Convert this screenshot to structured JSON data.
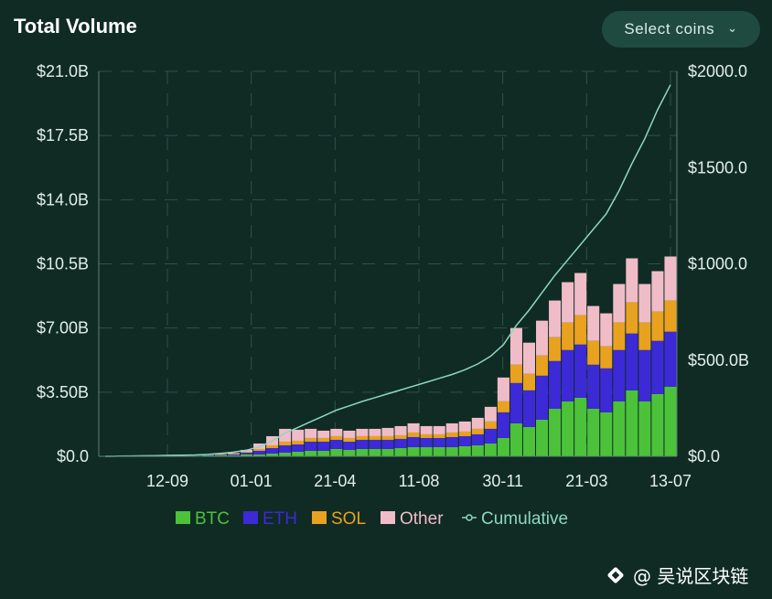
{
  "header": {
    "title": "Total Volume",
    "select_label": "Select coins",
    "select_icon": "chevron-down-icon"
  },
  "colors": {
    "background": "#0f2b24",
    "btc": "#4cc23a",
    "eth": "#3c2ad6",
    "sol": "#e8a21f",
    "other": "#f0bcc8",
    "cumulative": "#8fd7c0",
    "grid": "#2f5249",
    "axis_text": "#e4eeea"
  },
  "chart_data": {
    "type": "bar",
    "stacked": true,
    "x_tick_labels": [
      "12-09",
      "01-01",
      "21-04",
      "11-08",
      "30-11",
      "21-03",
      "13-07"
    ],
    "y_left": {
      "range": [
        0,
        21.0
      ],
      "unit": "B USD",
      "tick_labels": [
        "$0.0",
        "$3.50B",
        "$7.00B",
        "$10.5B",
        "$14.0B",
        "$17.5B",
        "$21.0B"
      ],
      "tick_values": [
        0,
        3.5,
        7.0,
        10.5,
        14.0,
        17.5,
        21.0
      ]
    },
    "y_right": {
      "range": [
        0,
        2000
      ],
      "unit": "B USD",
      "tick_labels": [
        "$0.0",
        "$500.0B",
        "$1000.0",
        "$1500.0",
        "$2000.0"
      ],
      "tick_values": [
        0,
        500,
        1000,
        1500,
        2000
      ]
    },
    "legend": {
      "placement": "bottom-center",
      "entries": [
        {
          "name": "BTC",
          "color": "#4cc23a",
          "marker": "square"
        },
        {
          "name": "ETH",
          "color": "#3c2ad6",
          "marker": "square"
        },
        {
          "name": "SOL",
          "color": "#e8a21f",
          "marker": "square"
        },
        {
          "name": "Other",
          "color": "#f0bcc8",
          "marker": "square"
        },
        {
          "name": "Cumulative",
          "color": "#8fd7c0",
          "marker": "line-dot"
        }
      ]
    },
    "grid": true,
    "series": [
      {
        "name": "BTC",
        "axis": "left",
        "values": [
          0,
          0,
          0,
          0,
          0,
          0,
          0,
          0,
          0.05,
          0.05,
          0.05,
          0.1,
          0.1,
          0.15,
          0.2,
          0.25,
          0.3,
          0.3,
          0.4,
          0.35,
          0.4,
          0.4,
          0.4,
          0.45,
          0.5,
          0.5,
          0.5,
          0.5,
          0.55,
          0.6,
          0.7,
          1.0,
          1.8,
          1.6,
          2.0,
          2.6,
          3.0,
          3.2,
          2.6,
          2.4,
          3.0,
          3.6,
          3.0,
          3.4,
          3.8
        ]
      },
      {
        "name": "ETH",
        "axis": "left",
        "values": [
          0,
          0,
          0,
          0,
          0,
          0,
          0,
          0,
          0.03,
          0.03,
          0.05,
          0.1,
          0.2,
          0.3,
          0.4,
          0.4,
          0.5,
          0.5,
          0.5,
          0.45,
          0.5,
          0.5,
          0.5,
          0.5,
          0.55,
          0.5,
          0.5,
          0.55,
          0.55,
          0.6,
          0.8,
          1.4,
          2.2,
          2.0,
          2.4,
          2.6,
          2.8,
          2.9,
          2.4,
          2.4,
          2.8,
          3.1,
          2.8,
          2.9,
          3.0
        ]
      },
      {
        "name": "SOL",
        "axis": "left",
        "values": [
          0,
          0,
          0,
          0,
          0,
          0,
          0,
          0,
          0.01,
          0.02,
          0.03,
          0.05,
          0.1,
          0.15,
          0.2,
          0.2,
          0.2,
          0.2,
          0.2,
          0.2,
          0.2,
          0.2,
          0.2,
          0.2,
          0.25,
          0.2,
          0.2,
          0.25,
          0.25,
          0.3,
          0.4,
          0.6,
          1.0,
          0.9,
          1.1,
          1.3,
          1.5,
          1.6,
          1.3,
          1.2,
          1.5,
          1.7,
          1.5,
          1.6,
          1.7
        ]
      },
      {
        "name": "Other",
        "axis": "left",
        "values": [
          0,
          0,
          0,
          0,
          0,
          0,
          0,
          0,
          0.02,
          0.03,
          0.05,
          0.1,
          0.3,
          0.5,
          0.7,
          0.6,
          0.5,
          0.4,
          0.4,
          0.4,
          0.4,
          0.4,
          0.45,
          0.5,
          0.5,
          0.45,
          0.45,
          0.5,
          0.55,
          0.6,
          0.8,
          1.3,
          2.0,
          1.7,
          1.9,
          2.0,
          2.2,
          2.3,
          1.9,
          1.8,
          2.1,
          2.4,
          2.1,
          2.2,
          2.4
        ]
      },
      {
        "name": "Cumulative",
        "axis": "right",
        "type": "line",
        "values": [
          0,
          1,
          2,
          3,
          4,
          5,
          6,
          7,
          10,
          15,
          22,
          32,
          50,
          80,
          120,
          150,
          180,
          210,
          240,
          262,
          285,
          305,
          325,
          345,
          365,
          385,
          405,
          425,
          450,
          480,
          520,
          580,
          680,
          760,
          850,
          940,
          1020,
          1100,
          1180,
          1260,
          1380,
          1520,
          1650,
          1800,
          1930
        ]
      }
    ]
  },
  "watermark": {
    "text": "@ 吴说区块链"
  }
}
